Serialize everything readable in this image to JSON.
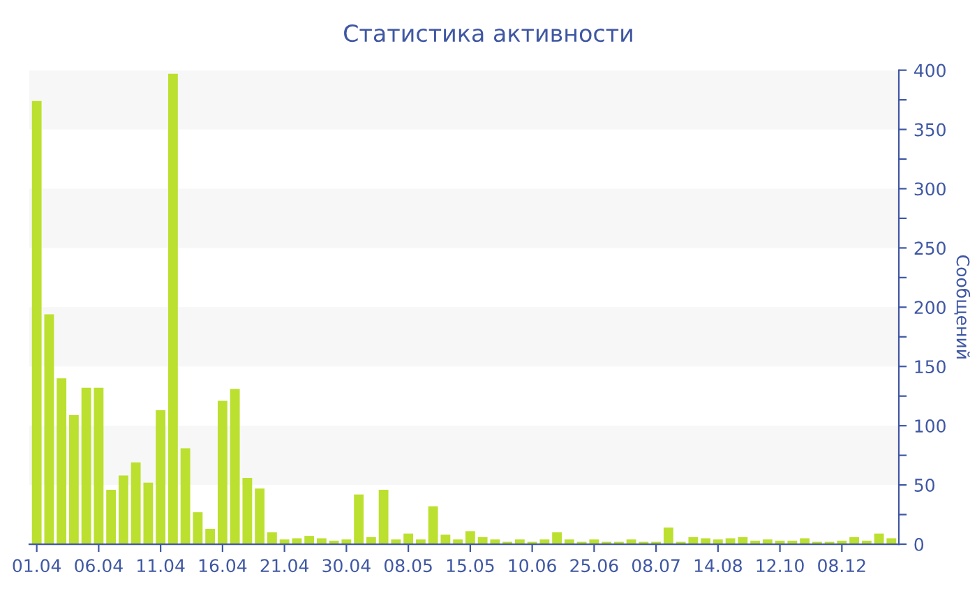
{
  "chart_data": {
    "type": "bar",
    "title": "Статистика активности",
    "ylabel": "Сообщений",
    "categories": [
      "01.04",
      null,
      null,
      null,
      null,
      "06.04",
      null,
      null,
      null,
      null,
      "11.04",
      null,
      null,
      null,
      null,
      "16.04",
      null,
      null,
      null,
      null,
      "21.04",
      null,
      null,
      null,
      null,
      "30.04",
      null,
      null,
      null,
      null,
      "08.05",
      null,
      null,
      null,
      null,
      "15.05",
      null,
      null,
      null,
      null,
      "10.06",
      null,
      null,
      null,
      null,
      "25.06",
      null,
      null,
      null,
      null,
      "08.07",
      null,
      null,
      null,
      null,
      "14.08",
      null,
      null,
      null,
      null,
      "12.10",
      null,
      null,
      null,
      null,
      "08.12",
      null,
      null,
      null,
      null
    ],
    "values": [
      374,
      194,
      140,
      109,
      132,
      132,
      46,
      58,
      69,
      52,
      113,
      397,
      81,
      27,
      13,
      121,
      131,
      56,
      47,
      10,
      4,
      5,
      7,
      5,
      3,
      4,
      42,
      6,
      46,
      4,
      9,
      4,
      32,
      8,
      4,
      11,
      6,
      4,
      2,
      4,
      2,
      4,
      10,
      4,
      2,
      4,
      2,
      2,
      4,
      2,
      2,
      14,
      2,
      6,
      5,
      4,
      5,
      6,
      3,
      4,
      3,
      3,
      5,
      2,
      2,
      3,
      6,
      3,
      9,
      5
    ],
    "color": "#bbe02f",
    "ylim": [
      0,
      400
    ],
    "yticks": [
      0,
      {
        "value": 25,
        "label": null
      },
      50,
      {
        "value": 75,
        "label": null
      },
      100,
      {
        "value": 125,
        "label": null
      },
      150,
      {
        "value": 175,
        "label": null
      },
      200,
      {
        "value": 225,
        "label": null
      },
      250,
      {
        "value": 275,
        "label": null
      },
      300,
      {
        "value": 325,
        "label": null
      },
      350,
      {
        "value": 375,
        "label": null
      },
      400
    ],
    "bands": [
      {
        "axis": "y",
        "from": 50,
        "to": 100,
        "color": "#f7f7f7"
      },
      {
        "axis": "y",
        "from": 150,
        "to": 200,
        "color": "#f7f7f7"
      },
      {
        "axis": "y",
        "from": 250,
        "to": 300,
        "color": "#f7f7f7"
      },
      {
        "axis": "y",
        "from": 350,
        "to": 400,
        "color": "#f7f7f7"
      }
    ],
    "grid": false
  }
}
